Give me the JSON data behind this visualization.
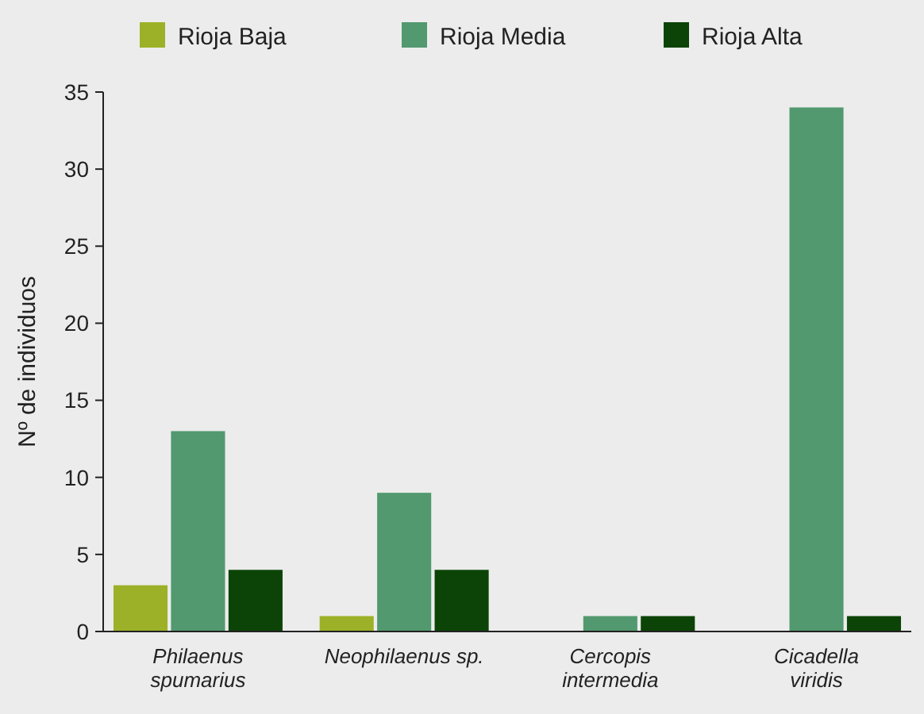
{
  "chart_data": {
    "type": "bar",
    "ylabel": "Nº de individuos",
    "categories": [
      "Philaenus spumarius",
      "Neophilaenus sp.",
      "Cercopis intermedia",
      "Cicadella viridis"
    ],
    "series": [
      {
        "name": "Rioja Baja",
        "color": "#9cb127",
        "values": [
          3,
          1,
          0,
          0
        ]
      },
      {
        "name": "Rioja Media",
        "color": "#52996f",
        "values": [
          13,
          9,
          1,
          34
        ]
      },
      {
        "name": "Rioja Alta",
        "color": "#0b4406",
        "values": [
          4,
          4,
          1,
          1
        ]
      }
    ],
    "ylim": [
      0,
      35
    ],
    "yticks": [
      0,
      5,
      10,
      15,
      20,
      25,
      30,
      35
    ],
    "grid": false,
    "legend": "top"
  }
}
